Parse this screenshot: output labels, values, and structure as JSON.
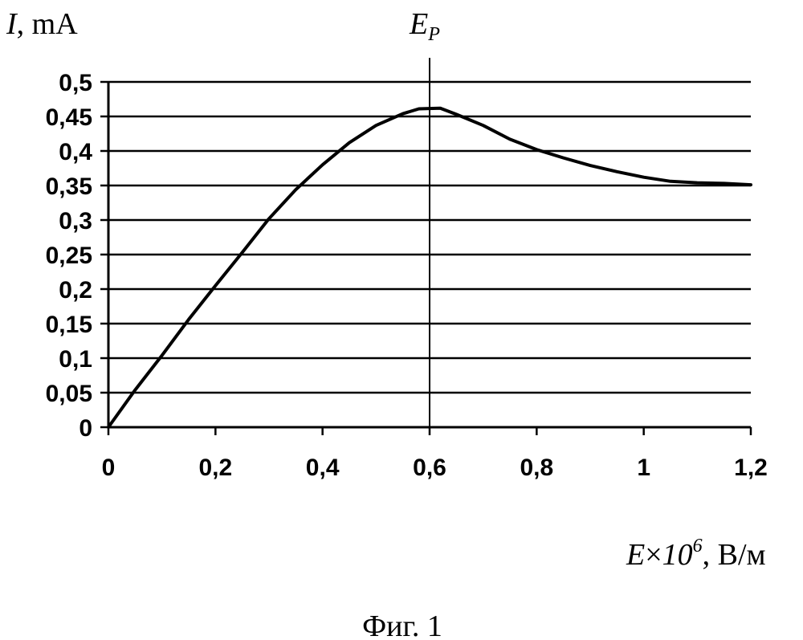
{
  "chart_data": {
    "type": "line",
    "ylabel_symbol": "I",
    "ylabel_unit": ", mA",
    "xlabel_symbol": "E",
    "xlabel_times": "×",
    "xlabel_factor": "10",
    "xlabel_exp": "6",
    "xlabel_unit": ", В/м",
    "marker_label": "E",
    "marker_label_sub": "P",
    "marker_x": 0.6,
    "xlim": [
      0,
      1.2
    ],
    "ylim": [
      0,
      0.5
    ],
    "x_ticks": [
      "0",
      "0,2",
      "0,4",
      "0,6",
      "0,8",
      "1",
      "1,2"
    ],
    "y_ticks": [
      "0",
      "0,05",
      "0,1",
      "0,15",
      "0,2",
      "0,25",
      "0,3",
      "0,35",
      "0,4",
      "0,45",
      "0,5"
    ],
    "grid": "horizontal",
    "series": [
      {
        "x": [
          0,
          0.05,
          0.1,
          0.15,
          0.2,
          0.25,
          0.3,
          0.35,
          0.4,
          0.45,
          0.5,
          0.55,
          0.58,
          0.62,
          0.65,
          0.7,
          0.75,
          0.8,
          0.85,
          0.9,
          0.95,
          1.0,
          1.05,
          1.1,
          1.15,
          1.2
        ],
        "y": [
          0,
          0.054,
          0.104,
          0.156,
          0.205,
          0.253,
          0.302,
          0.344,
          0.38,
          0.412,
          0.437,
          0.454,
          0.461,
          0.462,
          0.453,
          0.437,
          0.417,
          0.402,
          0.39,
          0.379,
          0.37,
          0.362,
          0.356,
          0.354,
          0.353,
          0.351
        ]
      }
    ]
  },
  "caption": "Фиг. 1"
}
